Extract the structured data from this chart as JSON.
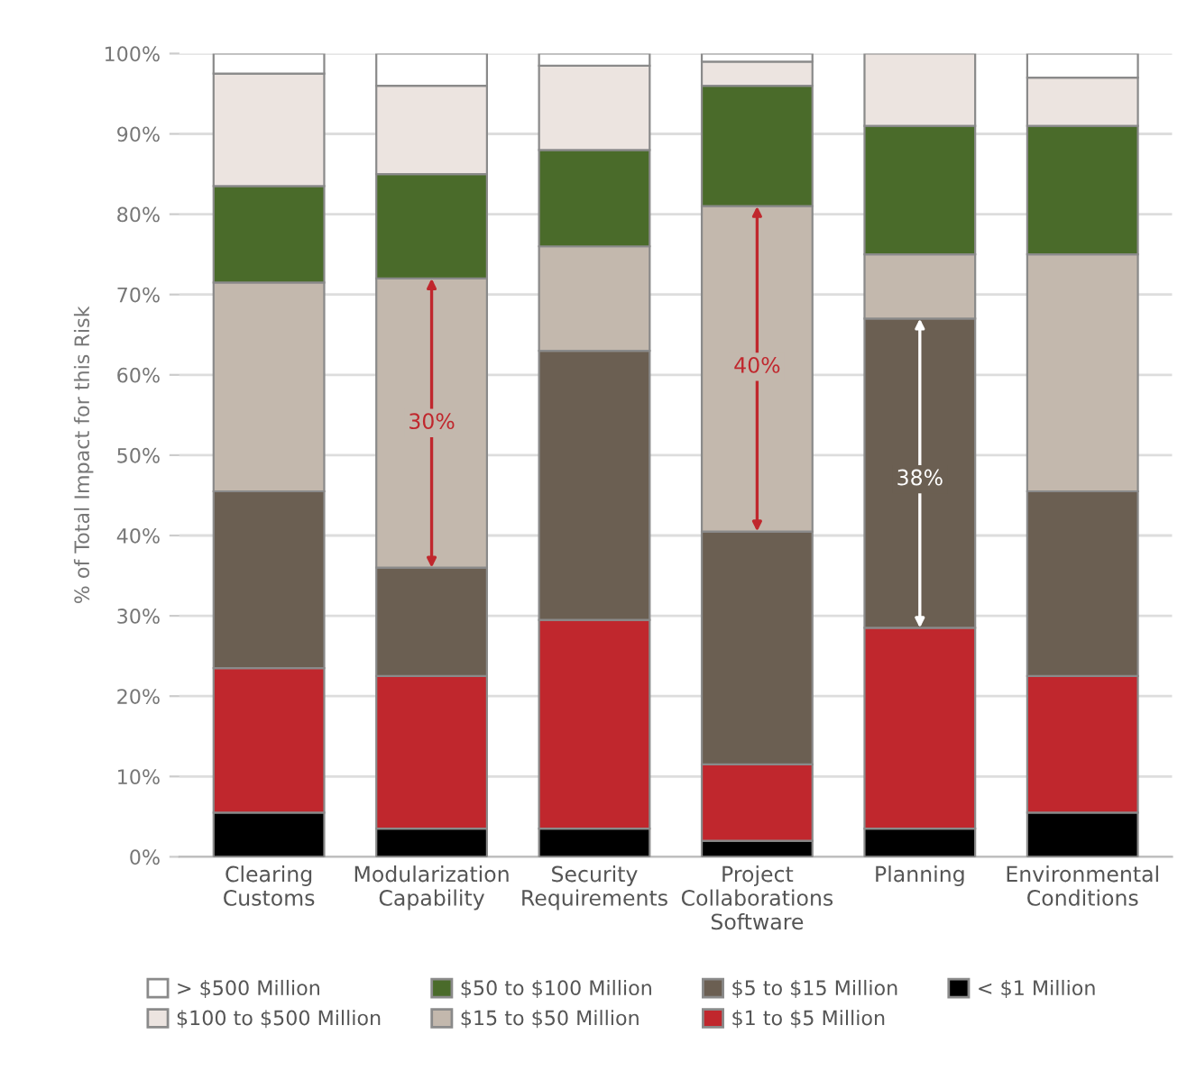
{
  "chart_data": {
    "type": "bar",
    "stacked": true,
    "categories": [
      "Clearing\nCustoms",
      "Modularization\nCapability",
      "Security\nRequirements",
      "Project\nCollaborations\nSoftware",
      "Planning",
      "Environmental\nConditions"
    ],
    "ylabel": "% of Total Impact for this Risk",
    "series": [
      {
        "name": "< $1 Million",
        "color": "#000000",
        "values": [
          5.5,
          3.5,
          3.5,
          2,
          3.5,
          5.5
        ]
      },
      {
        "name": "$1 to $5 Million",
        "color": "#c0272d",
        "values": [
          18,
          19,
          26,
          9.5,
          25,
          17
        ]
      },
      {
        "name": "$5 to $15 Million",
        "color": "#6b5f52",
        "values": [
          22,
          13.5,
          33.5,
          29,
          38.5,
          23
        ]
      },
      {
        "name": "$15 to $50 Million",
        "color": "#c3b8ad",
        "values": [
          26,
          36,
          13,
          40.5,
          8,
          29.5
        ]
      },
      {
        "name": "$50 to $100 Million",
        "color": "#4a6b2a",
        "values": [
          12,
          13,
          12,
          15,
          16,
          16
        ]
      },
      {
        "name": "$100 to $500 Million",
        "color": "#ece4e0",
        "values": [
          14,
          11,
          10.5,
          3,
          9,
          6
        ]
      },
      {
        "name": "> $500 Million",
        "color": "#ffffff",
        "values": [
          2.5,
          4,
          1.5,
          1,
          null,
          3
        ]
      }
    ],
    "ylim": [
      0,
      100
    ],
    "yticks": [
      {
        "value": 0,
        "label": "0%"
      },
      {
        "value": 10,
        "label": "10%"
      },
      {
        "value": 20,
        "label": "20%"
      },
      {
        "value": 30,
        "label": "30%"
      },
      {
        "value": 40,
        "label": "40%"
      },
      {
        "value": 50,
        "label": "50%"
      },
      {
        "value": 60,
        "label": "60%"
      },
      {
        "value": 70,
        "label": "70%"
      },
      {
        "value": 80,
        "label": "80%"
      },
      {
        "value": 90,
        "label": "90%"
      },
      {
        "value": 100,
        "label": "100%"
      }
    ],
    "grid": "y",
    "legend": "bottom",
    "annotations": [
      {
        "text": "30%",
        "x": "Modularization\nCapability",
        "y": 54
      },
      {
        "text": "40%",
        "x": "Project\nCollaborations\nSoftware",
        "y": 61
      },
      {
        "text": "38%",
        "x": "Planning",
        "y": 47
      }
    ]
  }
}
